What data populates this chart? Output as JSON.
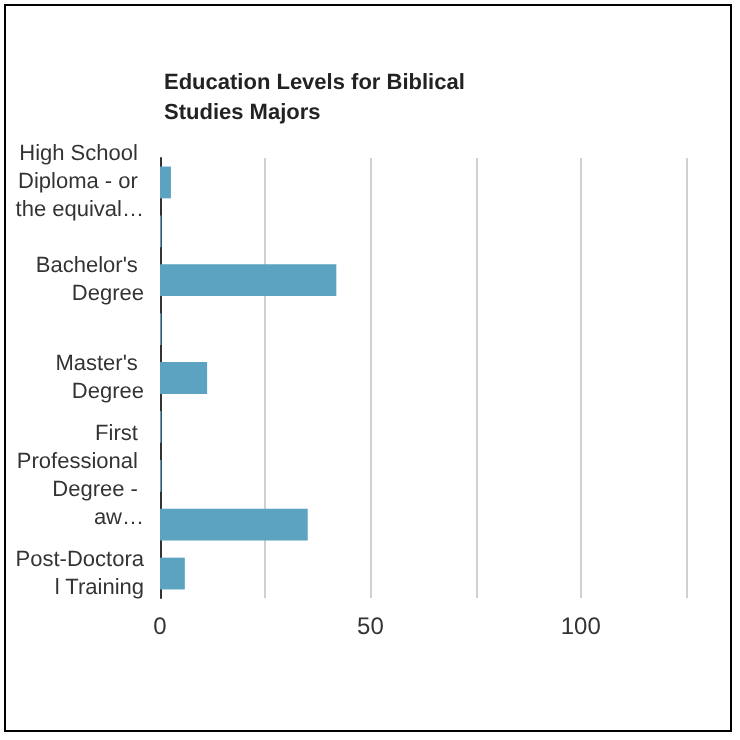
{
  "chart_data": {
    "type": "bar",
    "orientation": "horizontal",
    "title": "Education Levels for Biblical Studies Majors",
    "categories": [
      "High School Diploma - or the equival…",
      null,
      "Bachelor's Degree",
      null,
      "Master's Degree",
      null,
      "First Professional Degree - aw…",
      null,
      "Post-Doctoral Training"
    ],
    "values": [
      2.6,
      0.3,
      41.9,
      0.3,
      11.2,
      0.3,
      0.3,
      35.1,
      5.9
    ],
    "color": "#5ba3c0",
    "xlim": [
      0,
      125
    ],
    "xticks": [
      0,
      {
        "value": 25,
        "label": null
      },
      50,
      {
        "value": 75,
        "label": null
      },
      100,
      {
        "value": 125,
        "label": null
      }
    ],
    "grid": "x"
  }
}
